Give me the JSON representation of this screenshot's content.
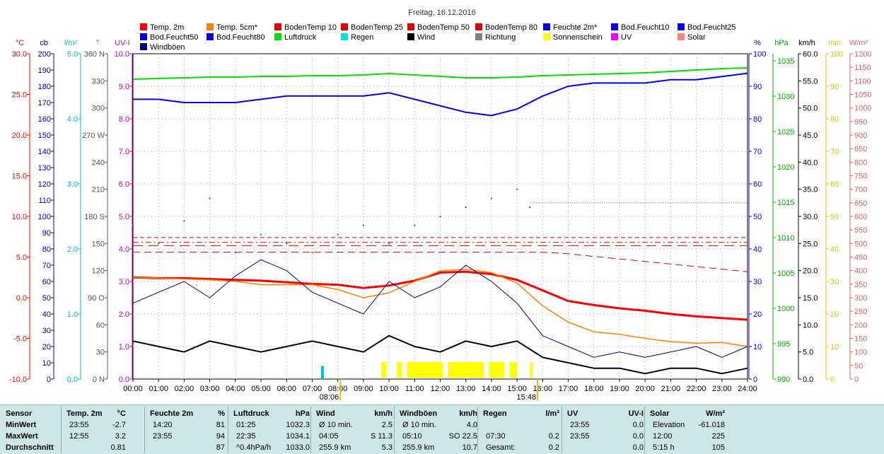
{
  "title": "Freitag, 16.12.2016",
  "axes": {
    "temp": {
      "label": "°C",
      "color": "#ff0000",
      "ticks": [
        "30.0",
        "25.0",
        "20.0",
        "15.0",
        "10.0",
        "5.0",
        "0.0",
        "-5.0",
        "-10.0"
      ]
    },
    "cb": {
      "label": "cb",
      "color": "#0000a0",
      "ticks": [
        "200",
        "190",
        "180",
        "170",
        "160",
        "150",
        "140",
        "130",
        "120",
        "110",
        "100",
        "90",
        "80",
        "70",
        "60",
        "50",
        "40",
        "30",
        "20",
        "10",
        "0"
      ]
    },
    "rain": {
      "label": "l/m²",
      "color": "#00c0c0",
      "ticks": [
        "5.0",
        "4.0",
        "3.0",
        "2.0",
        "1.0",
        "0.0"
      ]
    },
    "dir": {
      "label": "°",
      "color": "#555555",
      "ticks": [
        "360 N",
        "330",
        "300",
        "270 W",
        "240",
        "210",
        "180 S",
        "150",
        "120",
        "90 O",
        "60",
        "30",
        "0 N"
      ]
    },
    "uv": {
      "label": "UV-I",
      "color": "#c000c0",
      "ticks": [
        "10.0",
        "9.0",
        "8.0",
        "7.0",
        "6.0",
        "5.0",
        "4.0",
        "3.0",
        "2.0",
        "1.0",
        "0.0"
      ]
    },
    "hum": {
      "label": "%",
      "color": "#0000ff",
      "ticks": [
        "100",
        "90",
        "80",
        "70",
        "60",
        "50",
        "40",
        "30",
        "20",
        "10",
        "0"
      ]
    },
    "press": {
      "label": "hPa",
      "color": "#00b000",
      "ticks": [
        "1035",
        "1030",
        "1025",
        "1020",
        "1015",
        "1010",
        "1005",
        "1000",
        "995",
        "990"
      ]
    },
    "wind": {
      "label": "km/h",
      "color": "#000000",
      "ticks": [
        "60.0",
        "55.0",
        "50.0",
        "45.0",
        "40.0",
        "35.0",
        "30.0",
        "25.0",
        "20.0",
        "15.0",
        "10.0",
        "5.0",
        "0.0"
      ]
    },
    "sun": {
      "label": "min",
      "color": "#e0c000",
      "ticks": [
        "100",
        "90",
        "80",
        "70",
        "60",
        "50",
        "40",
        "30",
        "20",
        "10",
        "0"
      ]
    },
    "solar": {
      "label": "W/m²",
      "color": "#e06060",
      "ticks": [
        "1200",
        "1150",
        "1100",
        "1050",
        "1000",
        "950",
        "900",
        "850",
        "800",
        "750",
        "700",
        "650",
        "600",
        "550",
        "500",
        "450",
        "400",
        "350",
        "300",
        "250",
        "200",
        "150",
        "100",
        "50",
        "0"
      ]
    }
  },
  "x_ticks": [
    "00:00",
    "01:00",
    "02:00",
    "03:00",
    "04:00",
    "05:00",
    "06:00",
    "07:00",
    "08:00",
    "09:00",
    "10:00",
    "11:00",
    "12:00",
    "13:00",
    "14:00",
    "15:00",
    "16:00",
    "17:00",
    "18:00",
    "19:00",
    "20:00",
    "21:00",
    "22:00",
    "23:00",
    "24:00"
  ],
  "sunrise": "08:06",
  "sunset": "15:48",
  "legend": [
    {
      "name": "Temp. 2m",
      "color": "#ff0000"
    },
    {
      "name": "Temp. 5cm*",
      "color": "#ff8000"
    },
    {
      "name": "BodenTemp 10",
      "color": "#e00000"
    },
    {
      "name": "BodenTemp 25",
      "color": "#e00000"
    },
    {
      "name": "BodenTemp 50",
      "color": "#e00000"
    },
    {
      "name": "BodenTemp 80",
      "color": "#e00000"
    },
    {
      "name": "Feuchte 2m*",
      "color": "#0000ff"
    },
    {
      "name": "Bod.Feucht10",
      "color": "#0000ff"
    },
    {
      "name": "Bod.Feucht25",
      "color": "#0000ff"
    },
    {
      "name": "Bod.Feucht50",
      "color": "#0000ff"
    },
    {
      "name": "Bod.Feucht80",
      "color": "#0000ff"
    },
    {
      "name": "Luftdruck",
      "color": "#00e000"
    },
    {
      "name": "Regen",
      "color": "#00e0e0"
    },
    {
      "name": "Wind",
      "color": "#000000"
    },
    {
      "name": "Richtung",
      "color": "#808080"
    },
    {
      "name": "Sonnenschein",
      "color": "#ffff00"
    },
    {
      "name": "UV",
      "color": "#ff00ff"
    },
    {
      "name": "Solar",
      "color": "#ff8080"
    },
    {
      "name": "Windböen",
      "color": "#000080"
    }
  ],
  "chart_data": {
    "type": "line",
    "title": "Freitag, 16.12.2016",
    "x_unit": "hour",
    "xlim": [
      0,
      24
    ],
    "series": [
      {
        "name": "Temp. 2m",
        "axis": "temp",
        "ylim": [
          -10,
          30
        ],
        "x": [
          0,
          1,
          2,
          3,
          4,
          5,
          6,
          7,
          8,
          9,
          10,
          11,
          12,
          13,
          14,
          15,
          16,
          17,
          18,
          19,
          20,
          21,
          22,
          23,
          24
        ],
        "y": [
          2.5,
          2.4,
          2.4,
          2.3,
          2.2,
          2.1,
          1.9,
          1.7,
          1.6,
          1.2,
          1.5,
          2.1,
          3.1,
          3.2,
          2.9,
          2.2,
          0.9,
          -0.4,
          -0.9,
          -1.3,
          -1.6,
          -2.0,
          -2.3,
          -2.5,
          -2.7
        ]
      },
      {
        "name": "Temp. 5cm*",
        "axis": "temp",
        "ylim": [
          -10,
          30
        ],
        "x": [
          0,
          1,
          2,
          3,
          4,
          5,
          6,
          7,
          8,
          9,
          10,
          11,
          12,
          13,
          14,
          15,
          16,
          17,
          18,
          19,
          20,
          21,
          22,
          23,
          24
        ],
        "y": [
          2.5,
          2.4,
          2.3,
          2.2,
          2.0,
          1.6,
          1.6,
          1.6,
          1.0,
          0.0,
          0.6,
          2.0,
          3.3,
          3.5,
          3.1,
          1.8,
          -1.0,
          -3.0,
          -4.2,
          -4.5,
          -5.0,
          -5.4,
          -5.6,
          -5.5,
          -6.0
        ]
      },
      {
        "name": "Feuchte 2m*",
        "axis": "hum",
        "ylim": [
          0,
          100
        ],
        "x": [
          0,
          1,
          2,
          3,
          4,
          5,
          6,
          7,
          8,
          9,
          10,
          11,
          12,
          13,
          14,
          15,
          16,
          17,
          18,
          19,
          20,
          21,
          22,
          23,
          24
        ],
        "y": [
          86,
          86,
          85,
          85,
          85,
          86,
          87,
          87,
          87,
          87,
          88,
          86,
          84,
          82,
          81,
          83,
          87,
          90,
          91,
          91,
          91,
          92,
          92,
          93,
          94
        ]
      },
      {
        "name": "Luftdruck",
        "axis": "press",
        "ylim": [
          990,
          1036
        ],
        "x": [
          0,
          1,
          2,
          3,
          4,
          5,
          6,
          7,
          8,
          9,
          10,
          11,
          12,
          13,
          14,
          15,
          16,
          17,
          18,
          19,
          20,
          21,
          22,
          23,
          24
        ],
        "y": [
          1032.4,
          1032.5,
          1032.6,
          1032.7,
          1032.7,
          1032.8,
          1032.8,
          1032.9,
          1032.9,
          1033.0,
          1033.2,
          1033.0,
          1032.8,
          1032.6,
          1032.6,
          1032.7,
          1032.9,
          1033.0,
          1033.1,
          1033.2,
          1033.3,
          1033.5,
          1033.7,
          1033.9,
          1034.0
        ]
      },
      {
        "name": "BodenTemp 10",
        "axis": "temp",
        "ylim": [
          -10,
          30
        ],
        "x": [
          0,
          16,
          17,
          24
        ],
        "y": [
          5.6,
          5.6,
          5.4,
          3.2
        ]
      },
      {
        "name": "BodenTemp 25",
        "axis": "temp",
        "ylim": [
          -10,
          30
        ],
        "x": [
          0,
          24
        ],
        "y": [
          6.4,
          6.4
        ]
      },
      {
        "name": "BodenTemp 50",
        "axis": "temp",
        "ylim": [
          -10,
          30
        ],
        "x": [
          0,
          24
        ],
        "y": [
          6.8,
          6.8
        ]
      },
      {
        "name": "BodenTemp 80",
        "axis": "temp",
        "ylim": [
          -10,
          30
        ],
        "x": [
          0,
          24
        ],
        "y": [
          7.4,
          7.4
        ]
      },
      {
        "name": "Wind",
        "axis": "wind",
        "ylim": [
          0,
          60
        ],
        "x": [
          0,
          1,
          2,
          3,
          4,
          5,
          6,
          7,
          8,
          9,
          10,
          11,
          12,
          13,
          14,
          15,
          16,
          17,
          18,
          19,
          20,
          21,
          22,
          23,
          24
        ],
        "y": [
          7,
          6,
          5,
          7,
          6,
          5,
          6,
          7,
          6,
          5,
          8,
          6,
          5,
          7,
          6,
          7,
          4,
          3,
          2,
          2,
          1,
          2,
          2,
          1,
          2
        ]
      },
      {
        "name": "Windböen",
        "axis": "wind",
        "ylim": [
          0,
          60
        ],
        "x": [
          0,
          1,
          2,
          3,
          4,
          5,
          6,
          7,
          8,
          9,
          10,
          11,
          12,
          13,
          14,
          15,
          16,
          17,
          18,
          19,
          20,
          21,
          22,
          23,
          24
        ],
        "y": [
          14,
          16,
          18,
          15,
          19,
          22,
          20,
          16,
          14,
          12,
          18,
          15,
          17,
          21,
          18,
          14,
          8,
          6,
          4,
          5,
          4,
          5,
          6,
          4,
          6
        ]
      }
    ],
    "richtung_dots": {
      "axis": "dir",
      "ylim": [
        0,
        360
      ],
      "x": [
        0,
        1,
        2,
        3,
        4,
        5,
        6,
        7,
        8,
        9,
        10,
        11,
        12,
        13,
        14,
        15,
        15.5
      ],
      "y": [
        170,
        150,
        175,
        200,
        140,
        160,
        150,
        140,
        160,
        170,
        150,
        170,
        180,
        190,
        200,
        210,
        190
      ]
    },
    "richtung_line": {
      "x": [
        15.5,
        24
      ],
      "y": [
        195,
        195
      ]
    },
    "sonnenschein": {
      "axis": "sun",
      "ylim": [
        0,
        100
      ],
      "x_start": [
        9.7,
        10.3,
        10.7,
        12.3,
        13.9,
        14.7,
        15.5
      ],
      "x_end": [
        9.9,
        10.5,
        12.1,
        13.7,
        14.5,
        15.0,
        15.6
      ],
      "value": 5
    },
    "regen": {
      "axis": "rain",
      "ylim": [
        0,
        5
      ],
      "x": [
        7.4
      ],
      "y": [
        0.2
      ]
    }
  },
  "summary": {
    "sensor": {
      "h": "Sensor",
      "rows": [
        "MinWert",
        "MaxWert",
        "Durchschnitt"
      ]
    },
    "temp": {
      "h": "Temp. 2m",
      "u": "°C",
      "rows": [
        [
          "23:55",
          "-2.7"
        ],
        [
          "12:55",
          "3.2"
        ],
        [
          "",
          "0.81"
        ]
      ]
    },
    "hum": {
      "h": "Feuchte 2m",
      "u": "%",
      "rows": [
        [
          "14:20",
          "81"
        ],
        [
          "23:55",
          "94"
        ],
        [
          "",
          "87"
        ]
      ]
    },
    "press": {
      "h": "Luftdruck",
      "u": "hPa",
      "rows": [
        [
          "01:25",
          "1032.3"
        ],
        [
          "22:35",
          "1034.1"
        ],
        [
          "^0.4hPa/h",
          "1033.0"
        ]
      ]
    },
    "wind": {
      "h": "Wind",
      "u": "km/h",
      "rows": [
        [
          "Ø 10 min.",
          "2.5"
        ],
        [
          "04:05",
          "S 11.3"
        ],
        [
          "255.9 km",
          "5.3"
        ]
      ]
    },
    "gust": {
      "h": "Windböen",
      "u": "km/h",
      "rows": [
        [
          "Ø 10 min.",
          "4.0"
        ],
        [
          "05:10",
          "SO 22.5"
        ],
        [
          "255.9 km",
          "10.7"
        ]
      ]
    },
    "rain": {
      "h": "Regen",
      "u": "l/m²",
      "rows": [
        [
          "",
          ""
        ],
        [
          "07:30",
          "0.2"
        ],
        [
          "Gesamt:",
          "0.2"
        ]
      ]
    },
    "uv": {
      "h": "UV",
      "u": "UV-I",
      "rows": [
        [
          "23:55",
          "0.0"
        ],
        [
          "23:55",
          "0.0"
        ],
        [
          "",
          "0.0"
        ]
      ]
    },
    "solar": {
      "h": "Solar",
      "u": "W/m²",
      "rows": [
        [
          "Elevation",
          "-61.018"
        ],
        [
          "12:00",
          "225"
        ],
        [
          "5:15 h",
          "105"
        ]
      ]
    }
  }
}
